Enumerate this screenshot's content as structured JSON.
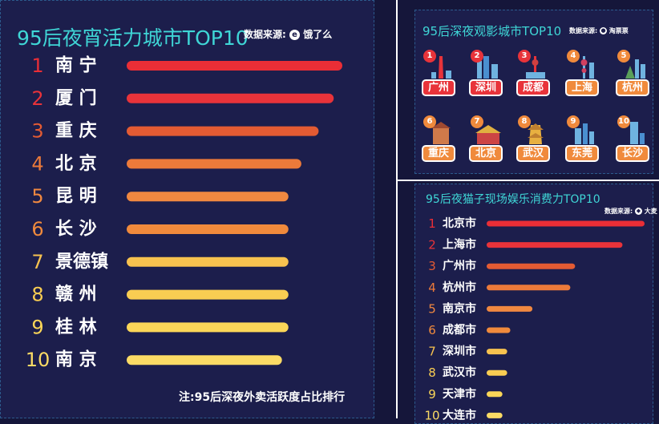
{
  "colors": {
    "background": "#15163a",
    "panel": "#1c1e4c",
    "accent_title": "#3fd6d6",
    "bar_palette": [
      "#ea2e36",
      "#e8333a",
      "#e35b33",
      "#ec7a3a",
      "#f08840",
      "#f08a3c",
      "#f7c24f",
      "#f9cd52",
      "#fbd658",
      "#fbdb65"
    ]
  },
  "panel_left": {
    "title": "95后夜宵活力城市TOP10",
    "source_label": "数据来源:",
    "source_brand": "饿了么",
    "source_logo_icon": "eleme-logo-icon",
    "note": "注:95后深夜外卖活跃度占比排行"
  },
  "panel_top_right": {
    "title": "95后深夜观影城市TOP10",
    "source_label": "数据来源:",
    "source_brand": "淘票票",
    "source_logo_icon": "taopiaopiao-logo-icon",
    "cities": [
      {
        "rank": "1",
        "name": "广州",
        "color": "#e8333a",
        "icon": "canton-tower-icon"
      },
      {
        "rank": "2",
        "name": "深圳",
        "color": "#e8333a",
        "icon": "shenzhen-skyline-icon"
      },
      {
        "rank": "3",
        "name": "成都",
        "color": "#e8333a",
        "icon": "chengdu-tower-icon"
      },
      {
        "rank": "4",
        "name": "上海",
        "color": "#f08a3c",
        "icon": "oriental-pearl-tower-icon"
      },
      {
        "rank": "5",
        "name": "杭州",
        "color": "#f08a3c",
        "icon": "hangzhou-pagoda-icon"
      },
      {
        "rank": "6",
        "name": "重庆",
        "color": "#f08a3c",
        "icon": "chongqing-building-icon"
      },
      {
        "rank": "7",
        "name": "北京",
        "color": "#f08a3c",
        "icon": "tiananmen-icon"
      },
      {
        "rank": "8",
        "name": "武汉",
        "color": "#f08a3c",
        "icon": "yellow-crane-tower-icon"
      },
      {
        "rank": "9",
        "name": "东莞",
        "color": "#f08a3c",
        "icon": "dongguan-skyline-icon"
      },
      {
        "rank": "10",
        "name": "长沙",
        "color": "#f08a3c",
        "icon": "changsha-tower-icon"
      }
    ]
  },
  "panel_bottom_right": {
    "title": "95后夜猫子现场娱乐消费力TOP10",
    "source_label": "数据来源:",
    "source_brand": "大麦",
    "source_logo_icon": "damai-logo-icon"
  },
  "chart_data": [
    {
      "type": "bar",
      "orientation": "horizontal",
      "title": "95后夜宵活力城市TOP10",
      "categories": [
        "南 宁",
        "厦 门",
        "重 庆",
        "北 京",
        "昆 明",
        "长 沙",
        "景德镇",
        "赣 州",
        "桂 林",
        "南 京"
      ],
      "ranks": [
        "1",
        "2",
        "3",
        "4",
        "5",
        "6",
        "7",
        "8",
        "9",
        "10"
      ],
      "values": [
        100,
        96,
        89,
        81,
        75,
        75,
        75,
        75,
        75,
        72
      ],
      "xlim": [
        0,
        100
      ],
      "axis": "none, values estimated relative to the longest bar",
      "note": "注:95后深夜外卖活跃度占比排行"
    },
    {
      "type": "bar",
      "orientation": "horizontal",
      "title": "95后夜猫子现场娱乐消费力TOP10",
      "categories": [
        "北京市",
        "上海市",
        "广州市",
        "杭州市",
        "南京市",
        "成都市",
        "深圳市",
        "武汉市",
        "天津市",
        "大连市"
      ],
      "ranks": [
        "1",
        "2",
        "3",
        "4",
        "5",
        "6",
        "7",
        "8",
        "9",
        "10"
      ],
      "values": [
        100,
        86,
        56,
        53,
        29,
        15,
        13,
        13,
        10,
        10
      ],
      "xlim": [
        0,
        100
      ],
      "axis": "none, values estimated relative to the longest bar"
    }
  ]
}
